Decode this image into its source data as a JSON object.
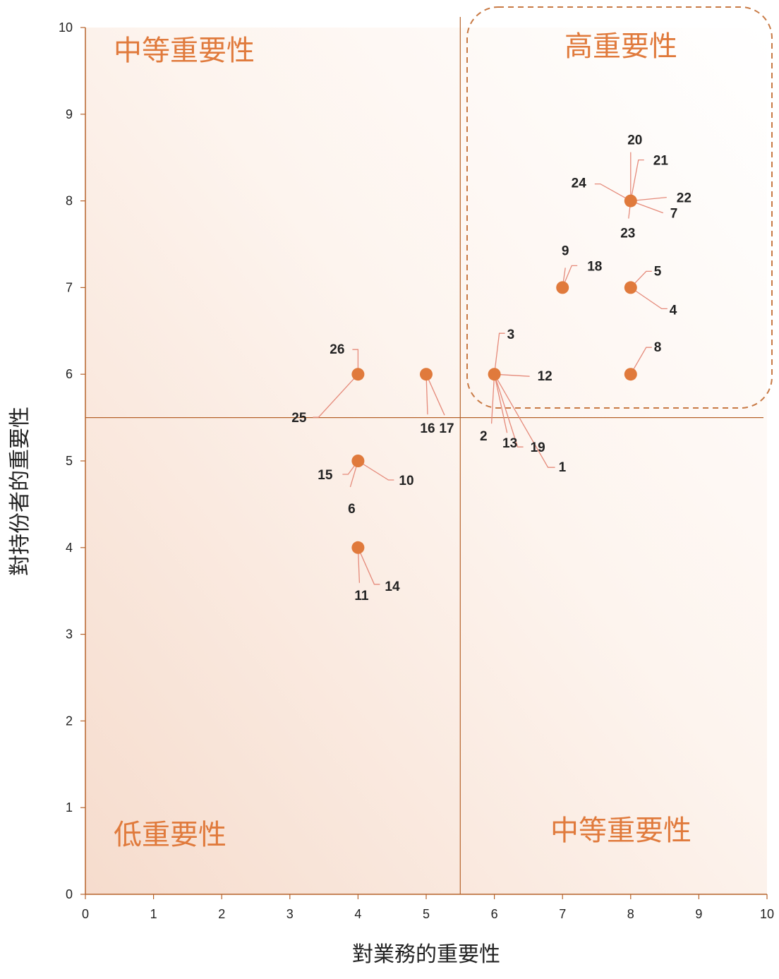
{
  "colors": {
    "accent": "#e07a3c",
    "axis": "#b5622a",
    "leader": "#e58a7a",
    "highlight_border": "#c87a45",
    "bg_corner": "#f6dccd"
  },
  "chart_data": {
    "type": "scatter",
    "xlabel": "對業務的重要性",
    "ylabel": "對持份者的重要性",
    "xlim": [
      0,
      10
    ],
    "ylim": [
      0,
      10
    ],
    "x_ticks": [
      "0",
      "1",
      "2",
      "3",
      "4",
      "5",
      "6",
      "7",
      "8",
      "9",
      "10"
    ],
    "y_ticks": [
      "0",
      "1",
      "2",
      "3",
      "4",
      "5",
      "6",
      "7",
      "8",
      "9",
      "10"
    ],
    "grid": false,
    "divider": {
      "x": 5.5,
      "y": 5.5
    },
    "quadrants": {
      "top_left": "中等重要性",
      "top_right": "高重要性",
      "bottom_left": "低重要性",
      "bottom_right": "中等重要性"
    },
    "points": [
      {
        "label": "1",
        "x": 6,
        "y": 6
      },
      {
        "label": "2",
        "x": 6,
        "y": 6
      },
      {
        "label": "3",
        "x": 6,
        "y": 6
      },
      {
        "label": "4",
        "x": 8,
        "y": 7
      },
      {
        "label": "5",
        "x": 8,
        "y": 7
      },
      {
        "label": "6",
        "x": 4,
        "y": 5
      },
      {
        "label": "7",
        "x": 8,
        "y": 8
      },
      {
        "label": "8",
        "x": 8,
        "y": 6
      },
      {
        "label": "9",
        "x": 7,
        "y": 7
      },
      {
        "label": "10",
        "x": 4,
        "y": 5
      },
      {
        "label": "11",
        "x": 4,
        "y": 4
      },
      {
        "label": "12",
        "x": 6,
        "y": 6
      },
      {
        "label": "13",
        "x": 6,
        "y": 6
      },
      {
        "label": "14",
        "x": 4,
        "y": 4
      },
      {
        "label": "15",
        "x": 4,
        "y": 5
      },
      {
        "label": "16",
        "x": 5,
        "y": 6
      },
      {
        "label": "17",
        "x": 5,
        "y": 6
      },
      {
        "label": "18",
        "x": 7,
        "y": 7
      },
      {
        "label": "19",
        "x": 6,
        "y": 6
      },
      {
        "label": "20",
        "x": 8,
        "y": 8
      },
      {
        "label": "21",
        "x": 8,
        "y": 8
      },
      {
        "label": "22",
        "x": 8,
        "y": 8
      },
      {
        "label": "23",
        "x": 8,
        "y": 8
      },
      {
        "label": "24",
        "x": 8,
        "y": 8
      },
      {
        "label": "25",
        "x": 4,
        "y": 6
      },
      {
        "label": "26",
        "x": 4,
        "y": 6
      }
    ]
  }
}
